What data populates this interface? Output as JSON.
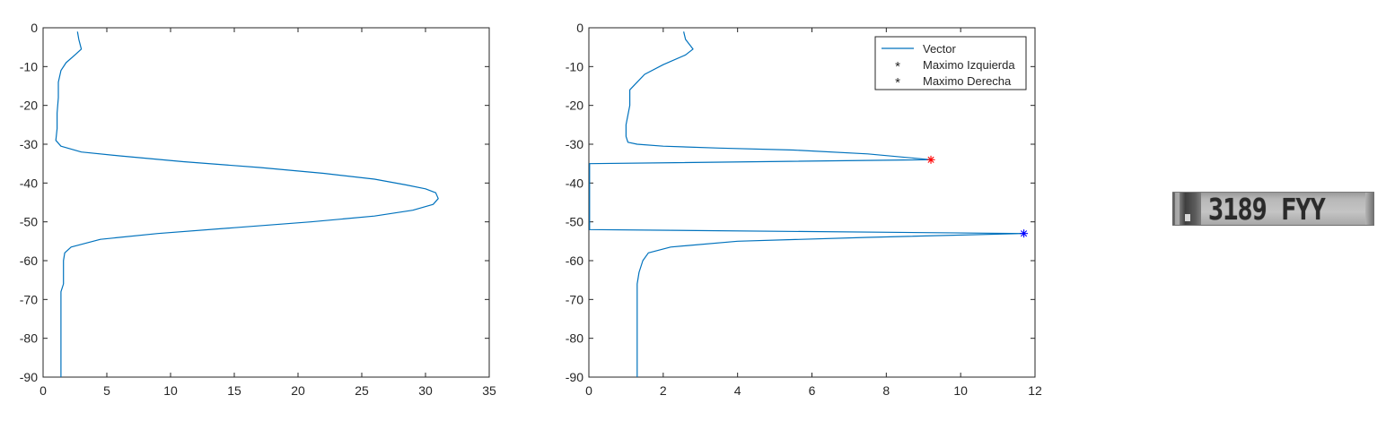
{
  "chart_data": [
    {
      "type": "line",
      "title": "",
      "xlabel": "",
      "ylabel": "",
      "xlim": [
        0,
        35
      ],
      "ylim": [
        -90,
        0
      ],
      "xticks": [
        "0",
        "5",
        "10",
        "15",
        "20",
        "25",
        "30",
        "35"
      ],
      "yticks": [
        "0",
        "-10",
        "-20",
        "-30",
        "-40",
        "-50",
        "-60",
        "-70",
        "-80",
        "-90"
      ],
      "grid": false,
      "legend": "none",
      "series": [
        {
          "color": "#0072BD",
          "x": [
            2.7,
            2.8,
            3.0,
            2.5,
            1.8,
            1.4,
            1.2,
            1.2,
            1.1,
            1.1,
            1.0,
            1.4,
            3.0,
            6.0,
            11.0,
            17.0,
            22.0,
            26.0,
            28.5,
            30.0,
            30.8,
            31.0,
            30.6,
            29.0,
            26.0,
            21.0,
            15.0,
            9.0,
            4.5,
            2.2,
            1.7,
            1.6,
            1.6,
            1.6,
            1.4,
            1.4
          ],
          "y": [
            -1,
            -3,
            -5.5,
            -7,
            -9,
            -11,
            -14,
            -18,
            -22,
            -26,
            -29,
            -30.5,
            -32,
            -33,
            -34.5,
            -36,
            -37.5,
            -39,
            -40.5,
            -41.5,
            -42.5,
            -44,
            -45.5,
            -47,
            -48.5,
            -50,
            -51.5,
            -53,
            -54.5,
            -56.5,
            -58,
            -60,
            -63,
            -66,
            -68,
            -90
          ]
        }
      ]
    },
    {
      "type": "line",
      "title": "",
      "xlabel": "",
      "ylabel": "",
      "xlim": [
        0,
        12
      ],
      "ylim": [
        -90,
        0
      ],
      "xticks": [
        "0",
        "2",
        "4",
        "6",
        "8",
        "10",
        "12"
      ],
      "yticks": [
        "0",
        "-10",
        "-20",
        "-30",
        "-40",
        "-50",
        "-60",
        "-70",
        "-80",
        "-90"
      ],
      "grid": false,
      "legend": "top-right",
      "series": [
        {
          "name": "Vector",
          "color": "#0072BD",
          "x": [
            2.55,
            2.6,
            2.8,
            2.6,
            2.0,
            1.5,
            1.3,
            1.1,
            1.1,
            1.0,
            1.0,
            1.05,
            1.3,
            2.0,
            3.5,
            5.5,
            7.5,
            9.2,
            0.02,
            0.02,
            11.7,
            7.5,
            4.0,
            2.2,
            1.6,
            1.45,
            1.35,
            1.3,
            1.3,
            1.3
          ],
          "y": [
            -1,
            -3,
            -5.5,
            -7,
            -9.5,
            -12,
            -14,
            -16,
            -20,
            -25,
            -28,
            -29.5,
            -30,
            -30.5,
            -31,
            -31.5,
            -32.5,
            -34,
            -35,
            -52,
            -53,
            -54,
            -55,
            -56.5,
            -58,
            -60,
            -63,
            -66,
            -67,
            -90
          ]
        },
        {
          "name": "Maximo Izquierda",
          "color": "#ff0000",
          "marker": "asterisk",
          "x": [
            9.2
          ],
          "y": [
            -34
          ]
        },
        {
          "name": "Maximo Derecha",
          "color": "#0000ff",
          "marker": "asterisk",
          "x": [
            11.7
          ],
          "y": [
            -53
          ]
        }
      ]
    }
  ],
  "plate": {
    "text": "3189 FYY"
  }
}
